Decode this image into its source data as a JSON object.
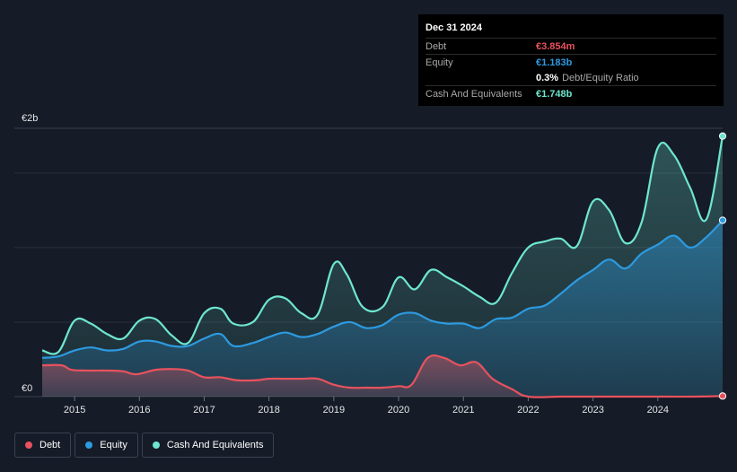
{
  "tooltip": {
    "date": "Dec 31 2024",
    "debt_label": "Debt",
    "debt_value": "€3.854m",
    "equity_label": "Equity",
    "equity_value": "€1.183b",
    "ratio_value": "0.3%",
    "ratio_label": "Debt/Equity Ratio",
    "cash_label": "Cash And Equivalents",
    "cash_value": "€1.748b"
  },
  "legend": [
    {
      "label": "Debt",
      "color": "#e8525e"
    },
    {
      "label": "Equity",
      "color": "#2d9ae0"
    },
    {
      "label": "Cash And Equivalents",
      "color": "#6ee6cf"
    }
  ],
  "colors": {
    "debt": "#e8525e",
    "equity": "#2d9ae0",
    "cash": "#6ee6cf",
    "background": "#151b27",
    "grid": "#2a303b"
  },
  "chart_data": {
    "type": "area",
    "title": "",
    "xlabel": "",
    "ylabel": "",
    "y_tick_labels": [
      "€0",
      "€2b"
    ],
    "y_range_billion_eur": [
      0,
      1.8
    ],
    "x_range_year": [
      2014.5,
      2025.0
    ],
    "x_tick_labels": [
      "2015",
      "2016",
      "2017",
      "2018",
      "2019",
      "2020",
      "2021",
      "2022",
      "2023",
      "2024"
    ],
    "x_tick_years": [
      2015,
      2016,
      2017,
      2018,
      2019,
      2020,
      2021,
      2022,
      2023,
      2024
    ],
    "grid": true,
    "legend_position": "bottom-left",
    "series": [
      {
        "name": "Debt",
        "unit": "billion EUR",
        "points": [
          [
            2014.5,
            0.21
          ],
          [
            2014.8,
            0.21
          ],
          [
            2014.95,
            0.18
          ],
          [
            2015.2,
            0.175
          ],
          [
            2015.5,
            0.175
          ],
          [
            2015.75,
            0.17
          ],
          [
            2015.95,
            0.15
          ],
          [
            2016.25,
            0.18
          ],
          [
            2016.5,
            0.185
          ],
          [
            2016.75,
            0.175
          ],
          [
            2017.0,
            0.13
          ],
          [
            2017.25,
            0.13
          ],
          [
            2017.5,
            0.11
          ],
          [
            2017.8,
            0.11
          ],
          [
            2018.0,
            0.12
          ],
          [
            2018.25,
            0.12
          ],
          [
            2018.5,
            0.12
          ],
          [
            2018.75,
            0.12
          ],
          [
            2019.0,
            0.08
          ],
          [
            2019.25,
            0.06
          ],
          [
            2019.5,
            0.06
          ],
          [
            2019.75,
            0.06
          ],
          [
            2020.0,
            0.07
          ],
          [
            2020.2,
            0.08
          ],
          [
            2020.45,
            0.26
          ],
          [
            2020.7,
            0.26
          ],
          [
            2020.95,
            0.21
          ],
          [
            2021.2,
            0.23
          ],
          [
            2021.45,
            0.12
          ],
          [
            2021.75,
            0.05
          ],
          [
            2022.0,
            0.0
          ],
          [
            2022.5,
            0.0
          ],
          [
            2023.0,
            0.0
          ],
          [
            2023.5,
            0.0
          ],
          [
            2024.0,
            0.0
          ],
          [
            2024.5,
            0.0
          ],
          [
            2025.0,
            0.004
          ]
        ]
      },
      {
        "name": "Equity",
        "unit": "billion EUR",
        "points": [
          [
            2014.5,
            0.26
          ],
          [
            2014.75,
            0.27
          ],
          [
            2015.0,
            0.31
          ],
          [
            2015.25,
            0.33
          ],
          [
            2015.5,
            0.31
          ],
          [
            2015.75,
            0.32
          ],
          [
            2016.0,
            0.37
          ],
          [
            2016.25,
            0.37
          ],
          [
            2016.5,
            0.34
          ],
          [
            2016.75,
            0.34
          ],
          [
            2017.0,
            0.39
          ],
          [
            2017.25,
            0.42
          ],
          [
            2017.45,
            0.34
          ],
          [
            2017.75,
            0.36
          ],
          [
            2018.0,
            0.4
          ],
          [
            2018.25,
            0.43
          ],
          [
            2018.5,
            0.4
          ],
          [
            2018.75,
            0.42
          ],
          [
            2019.0,
            0.47
          ],
          [
            2019.25,
            0.5
          ],
          [
            2019.5,
            0.46
          ],
          [
            2019.75,
            0.48
          ],
          [
            2020.0,
            0.55
          ],
          [
            2020.25,
            0.56
          ],
          [
            2020.5,
            0.51
          ],
          [
            2020.75,
            0.49
          ],
          [
            2021.0,
            0.49
          ],
          [
            2021.25,
            0.46
          ],
          [
            2021.5,
            0.52
          ],
          [
            2021.75,
            0.53
          ],
          [
            2022.0,
            0.59
          ],
          [
            2022.25,
            0.61
          ],
          [
            2022.5,
            0.69
          ],
          [
            2022.75,
            0.78
          ],
          [
            2023.0,
            0.85
          ],
          [
            2023.25,
            0.92
          ],
          [
            2023.5,
            0.86
          ],
          [
            2023.75,
            0.96
          ],
          [
            2024.0,
            1.02
          ],
          [
            2024.25,
            1.08
          ],
          [
            2024.5,
            1.0
          ],
          [
            2024.75,
            1.07
          ],
          [
            2025.0,
            1.183
          ]
        ]
      },
      {
        "name": "Cash And Equivalents",
        "unit": "billion EUR",
        "points": [
          [
            2014.5,
            0.31
          ],
          [
            2014.75,
            0.3
          ],
          [
            2015.0,
            0.51
          ],
          [
            2015.25,
            0.49
          ],
          [
            2015.5,
            0.42
          ],
          [
            2015.75,
            0.39
          ],
          [
            2016.0,
            0.51
          ],
          [
            2016.25,
            0.52
          ],
          [
            2016.5,
            0.41
          ],
          [
            2016.75,
            0.36
          ],
          [
            2017.0,
            0.56
          ],
          [
            2017.25,
            0.59
          ],
          [
            2017.45,
            0.49
          ],
          [
            2017.75,
            0.5
          ],
          [
            2018.0,
            0.65
          ],
          [
            2018.25,
            0.66
          ],
          [
            2018.5,
            0.56
          ],
          [
            2018.75,
            0.55
          ],
          [
            2019.0,
            0.89
          ],
          [
            2019.2,
            0.82
          ],
          [
            2019.45,
            0.6
          ],
          [
            2019.75,
            0.6
          ],
          [
            2020.0,
            0.8
          ],
          [
            2020.25,
            0.72
          ],
          [
            2020.5,
            0.85
          ],
          [
            2020.75,
            0.8
          ],
          [
            2021.0,
            0.74
          ],
          [
            2021.25,
            0.67
          ],
          [
            2021.5,
            0.63
          ],
          [
            2021.75,
            0.83
          ],
          [
            2022.0,
            1.0
          ],
          [
            2022.25,
            1.04
          ],
          [
            2022.5,
            1.06
          ],
          [
            2022.75,
            1.01
          ],
          [
            2023.0,
            1.31
          ],
          [
            2023.25,
            1.25
          ],
          [
            2023.5,
            1.03
          ],
          [
            2023.75,
            1.17
          ],
          [
            2024.0,
            1.67
          ],
          [
            2024.25,
            1.62
          ],
          [
            2024.5,
            1.4
          ],
          [
            2024.75,
            1.19
          ],
          [
            2025.0,
            1.748
          ]
        ]
      }
    ]
  }
}
